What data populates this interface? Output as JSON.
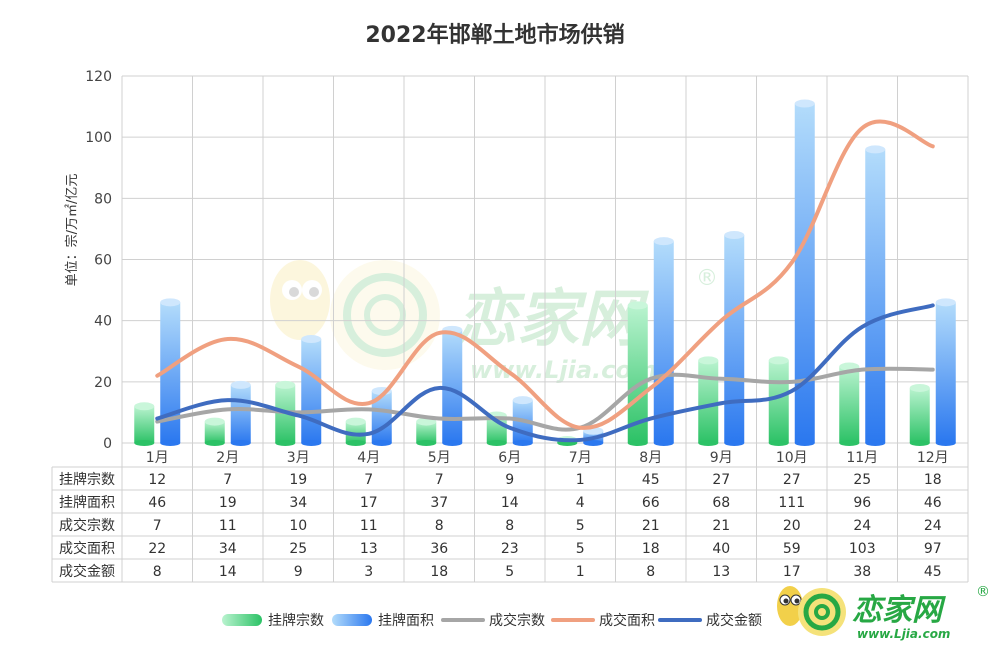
{
  "chart_data": {
    "type": "bar",
    "title": "2022年邯郸土地市场供销",
    "ylabel": "单位：宗/万㎡/亿元",
    "ylim": [
      0,
      120
    ],
    "yticks": [
      0,
      20,
      40,
      60,
      80,
      100,
      120
    ],
    "grid": true,
    "legend_position": "bottom",
    "categories": [
      "1月",
      "2月",
      "3月",
      "4月",
      "5月",
      "6月",
      "7月",
      "8月",
      "9月",
      "10月",
      "11月",
      "12月"
    ],
    "series": [
      {
        "name": "挂牌宗数",
        "kind": "bar",
        "color": "#3dd07a",
        "values": [
          12,
          7,
          19,
          7,
          7,
          9,
          1,
          45,
          27,
          27,
          25,
          18
        ]
      },
      {
        "name": "挂牌面积",
        "kind": "bar",
        "color": "#3f8cf5",
        "values": [
          46,
          19,
          34,
          17,
          37,
          14,
          4,
          66,
          68,
          111,
          96,
          46
        ]
      },
      {
        "name": "成交宗数",
        "kind": "line",
        "color": "#a6a6a6",
        "values": [
          7,
          11,
          10,
          11,
          8,
          8,
          5,
          21,
          21,
          20,
          24,
          24
        ]
      },
      {
        "name": "成交面积",
        "kind": "line",
        "color": "#f0a080",
        "values": [
          22,
          34,
          25,
          13,
          36,
          23,
          5,
          18,
          40,
          59,
          103,
          97
        ]
      },
      {
        "name": "成交金额",
        "kind": "line",
        "color": "#3f6cc0",
        "values": [
          8,
          14,
          9,
          3,
          18,
          5,
          1,
          8,
          13,
          17,
          38,
          45
        ]
      }
    ]
  },
  "watermark": {
    "brand": "恋家网",
    "url": "www.Ljia.com",
    "registered": "®"
  },
  "logo": {
    "brand": "恋家网",
    "url": "www.Ljia.com",
    "registered": "®"
  }
}
